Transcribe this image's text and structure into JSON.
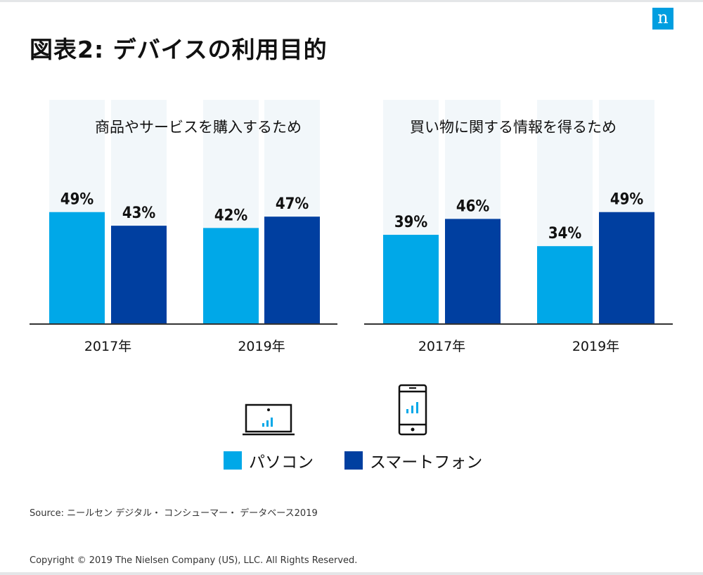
{
  "header": {
    "title": "図表2: デバイスの利用目的",
    "logo_letter": "n"
  },
  "chart_data": [
    {
      "type": "bar",
      "title": "商品やサービスを購入するため",
      "categories": [
        "2017年",
        "2019年"
      ],
      "series": [
        {
          "name": "パソコン",
          "values": [
            49,
            42
          ],
          "labels": [
            "49%",
            "42%"
          ]
        },
        {
          "name": "スマートフォン",
          "values": [
            43,
            47
          ],
          "labels": [
            "43%",
            "47%"
          ]
        }
      ],
      "ylim": [
        0,
        100
      ],
      "unit": "%"
    },
    {
      "type": "bar",
      "title": "買い物に関する情報を得るため",
      "categories": [
        "2017年",
        "2019年"
      ],
      "series": [
        {
          "name": "パソコン",
          "values": [
            39,
            34
          ],
          "labels": [
            "39%",
            "34%"
          ]
        },
        {
          "name": "スマートフォン",
          "values": [
            46,
            49
          ],
          "labels": [
            "46%",
            "49%"
          ]
        }
      ],
      "ylim": [
        0,
        100
      ],
      "unit": "%"
    }
  ],
  "legend": {
    "pc_label": "パソコン",
    "phone_label": "スマートフォン",
    "pc_icon": "laptop-icon",
    "phone_icon": "smartphone-icon"
  },
  "colors": {
    "pc": "#00a8e8",
    "phone": "#003fa0",
    "track": "#f2f7fa",
    "logo": "#009ee0",
    "axis": "#333333"
  },
  "footer": {
    "source": "Source: ニールセン デジタル・ コンシューマー・ データベース2019",
    "copyright": "Copyright © 2019 The Nielsen Company (US), LLC. All Rights Reserved."
  }
}
